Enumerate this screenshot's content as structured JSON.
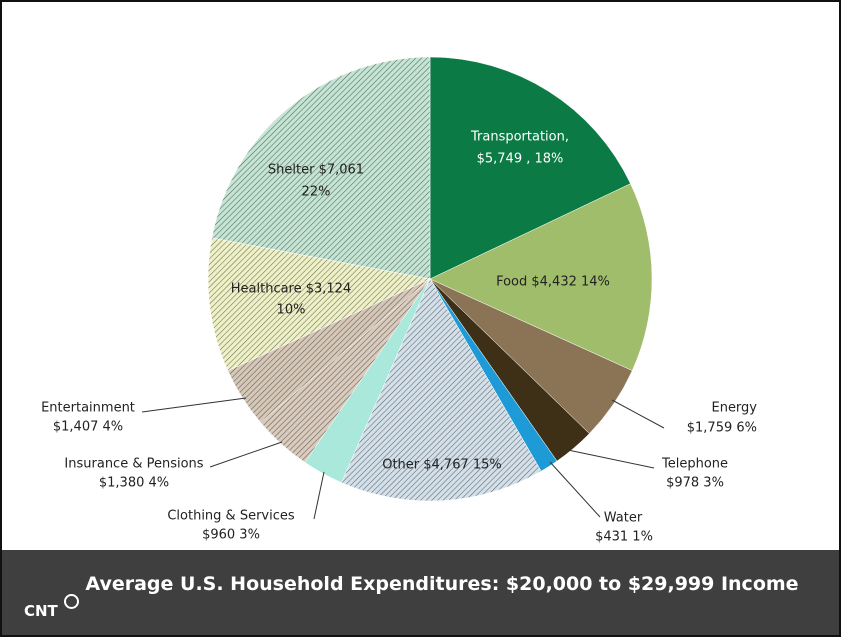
{
  "chart_data": {
    "type": "pie",
    "title": "Average U.S. Household Expenditures: $20,000 to $29,999 Income",
    "logo": "CNT",
    "values": [
      5749,
      4432,
      1759,
      978,
      431,
      4767,
      960,
      1380,
      1407,
      3124,
      7061
    ],
    "value_labels": [
      [
        "Transportation,",
        "$5,749 , 18%"
      ],
      [
        "Food  $4,432  14%"
      ],
      [
        "Energy",
        "$1,759  6%"
      ],
      [
        "Telephone",
        "$978  3%"
      ],
      [
        "Water",
        "$431  1%"
      ],
      [
        "Other  $4,767  15%"
      ],
      [
        "Clothing & Services",
        "$960  3%"
      ],
      [
        "Insurance & Pensions",
        "$1,380  4%"
      ],
      [
        "Entertainment",
        "$1,407  4%"
      ],
      [
        "Healthcare  $3,124",
        "10%"
      ],
      [
        "Shelter  $7,061",
        "22%"
      ]
    ],
    "colors": [
      "#0b7a45",
      "#9fbd6a",
      "#8b7455",
      "#3d3016",
      "#1e9ad6",
      "#d3e0ea",
      "#a9e8da",
      "#d9cbbd",
      "#d6c8b8",
      "#eef1c6",
      "#c4e4d4"
    ],
    "hatched": [
      false,
      false,
      false,
      false,
      false,
      true,
      false,
      true,
      true,
      true,
      true
    ]
  }
}
